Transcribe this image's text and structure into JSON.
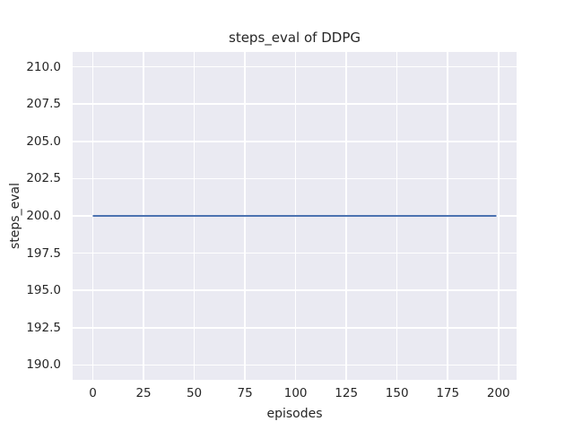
{
  "chart_data": {
    "type": "line",
    "title": "steps_eval of DDPG",
    "xlabel": "episodes",
    "ylabel": "steps_eval",
    "xlim": [
      -9.95,
      208.95
    ],
    "ylim": [
      189.0,
      211.0
    ],
    "x_tick_values": [
      0,
      25,
      50,
      75,
      100,
      125,
      150,
      175,
      200
    ],
    "x_tick_labels": [
      "0",
      "25",
      "50",
      "75",
      "100",
      "125",
      "150",
      "175",
      "200"
    ],
    "y_tick_values": [
      190.0,
      192.5,
      195.0,
      197.5,
      200.0,
      202.5,
      205.0,
      207.5,
      210.0
    ],
    "y_tick_labels": [
      "190.0",
      "192.5",
      "195.0",
      "197.5",
      "200.0",
      "202.5",
      "205.0",
      "207.5",
      "210.0"
    ],
    "grid": true,
    "legend_position": "none",
    "styles": {
      "plot_background": "#eaeaf2",
      "grid_color": "#ffffff",
      "text_color": "#262626",
      "line_color": "#4c72b0",
      "line_width": 2
    },
    "series": [
      {
        "name": "DDPG",
        "color": "#4c72b0",
        "x": [
          0,
          199
        ],
        "y": [
          200,
          200
        ]
      }
    ]
  }
}
